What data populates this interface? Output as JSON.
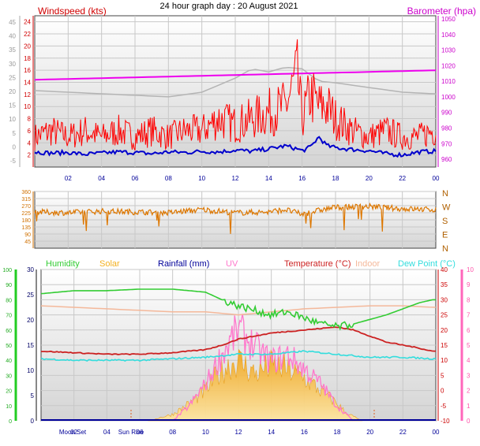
{
  "title": "24 hour graph day : 20 August 2021",
  "x_ticks": [
    "02",
    "04",
    "06",
    "08",
    "10",
    "12",
    "14",
    "16",
    "18",
    "20",
    "22",
    "00"
  ],
  "colors": {
    "wind": "#ff0000",
    "gust_avg": "#0000cc",
    "baro": "#ee00ee",
    "baro_grey": "#b4b4b4",
    "dir": "#dd7700",
    "humidity": "#33cc33",
    "solar": "#f3b020",
    "rain": "#000099",
    "uv": "#ff77cc",
    "temp": "#cc2222",
    "indoor": "#f4b89a",
    "dew": "#33dddd"
  },
  "chart_data": [
    {
      "type": "line",
      "name": "wind-baro",
      "title": "24 hour graph day : 20 August 2021",
      "left_label": "Windspeed (kts)",
      "right_label": "Barometer (hpa)",
      "left_ticks": [
        "24",
        "22",
        "20",
        "18",
        "16",
        "14",
        "12",
        "10",
        "8",
        "6",
        "4",
        "2"
      ],
      "outer_left_ticks": [
        "45",
        "40",
        "35",
        "30",
        "25",
        "20",
        "15",
        "10",
        "5",
        "0",
        "-5"
      ],
      "right_ticks": [
        "1050",
        "1040",
        "1030",
        "1020",
        "1010",
        "1000",
        "990",
        "980",
        "970",
        "960"
      ],
      "ylim": [
        0,
        25
      ],
      "baro_ylim": [
        955,
        1052
      ],
      "series": [
        {
          "key": "wind",
          "x": [
            0,
            1,
            2,
            3,
            4,
            5,
            6,
            7,
            8,
            9,
            10,
            11,
            12,
            13,
            14,
            15,
            15.7,
            16,
            16.5,
            17,
            17.5,
            18,
            19,
            20,
            21,
            22,
            23,
            23.8
          ],
          "values": [
            5,
            6,
            5,
            6,
            5,
            6,
            5,
            6,
            5,
            6,
            6,
            8,
            7,
            8,
            9,
            10,
            15,
            8,
            12,
            10,
            10,
            8,
            6,
            5,
            6,
            5,
            5,
            6
          ]
        },
        {
          "key": "gust_avg",
          "x": [
            0,
            1,
            2,
            3,
            4,
            5,
            6,
            7,
            8,
            9,
            10,
            11,
            12,
            13,
            14,
            15,
            15.7,
            16,
            16.5,
            17,
            17.5,
            18,
            19,
            20,
            21,
            22,
            23,
            23.8
          ],
          "values": [
            2.5,
            2.3,
            2.4,
            2.1,
            2.3,
            2.5,
            2.4,
            2.2,
            2.5,
            2.4,
            2.6,
            2.5,
            2.8,
            2.6,
            3,
            3.5,
            3,
            2.7,
            3.3,
            5,
            3.5,
            3.2,
            2.9,
            2.7,
            2.2,
            2,
            2.5,
            2.6
          ]
        },
        {
          "key": "baro",
          "x": [
            0,
            4,
            8,
            12,
            16,
            20,
            23.8
          ],
          "values": [
            1011,
            1012,
            1013,
            1014,
            1015,
            1016,
            1017
          ]
        },
        {
          "key": "baro_grey",
          "x": [
            0,
            4,
            8,
            10,
            12,
            13,
            14,
            15,
            16,
            17,
            18,
            20,
            22,
            23.8
          ],
          "values": [
            1004,
            1002,
            1000,
            1003,
            1012,
            1018,
            1016,
            1019,
            1018,
            1010,
            1009,
            1006,
            1003,
            1002
          ]
        }
      ]
    },
    {
      "type": "scatter",
      "name": "wind-direction",
      "left_ticks": [
        "360",
        "315",
        "270",
        "225",
        "180",
        "135",
        "90",
        "45"
      ],
      "right_ticks": [
        "N",
        "W",
        "S",
        "E",
        "N"
      ],
      "ylim": [
        0,
        360
      ],
      "series": [
        {
          "key": "dir",
          "x": [
            0,
            2,
            4,
            6,
            8,
            10,
            12,
            14,
            15,
            16,
            17,
            18,
            20,
            22,
            23.8
          ],
          "values": [
            230,
            225,
            235,
            230,
            225,
            245,
            225,
            230,
            245,
            215,
            240,
            260,
            265,
            250,
            245
          ]
        }
      ]
    },
    {
      "type": "line",
      "name": "temp-humidity-solar",
      "legend": [
        "Humidity",
        "Solar",
        "Rainfall (mm)",
        "UV",
        "Temperature (°C)",
        "Indoor",
        "Dew Point (°C)"
      ],
      "humidity_ticks": [
        "100",
        "90",
        "80",
        "70",
        "60",
        "50",
        "40",
        "30",
        "20",
        "10",
        "0"
      ],
      "solar_ticks": [
        "30",
        "25",
        "20",
        "15",
        "10",
        "5",
        "0"
      ],
      "temp_ticks": [
        "40",
        "35",
        "30",
        "25",
        "20",
        "15",
        "10",
        "5",
        "0",
        "-5",
        "-10"
      ],
      "uv_ticks": [
        "10",
        "9",
        "8",
        "7",
        "6",
        "5",
        "4",
        "3",
        "2",
        "1",
        "0"
      ],
      "x_annotations": [
        "Moon Set",
        "Sun Rise"
      ],
      "ylim": [
        -10,
        40
      ],
      "series": [
        {
          "key": "humidity",
          "x": [
            0,
            2,
            4,
            6,
            8,
            10,
            11,
            12,
            13,
            14,
            15,
            16,
            17,
            18,
            19,
            20,
            21,
            22,
            23,
            23.8
          ],
          "values": [
            84,
            86,
            86,
            87,
            87,
            85,
            80,
            76,
            73,
            70,
            72,
            68,
            64,
            62,
            64,
            67,
            70,
            74,
            78,
            80
          ]
        },
        {
          "key": "temp",
          "x": [
            0,
            2,
            4,
            6,
            8,
            10,
            11,
            12,
            13,
            14,
            15,
            16,
            17,
            18,
            19,
            20,
            21,
            22,
            23,
            23.8
          ],
          "values": [
            13,
            12.5,
            12,
            12,
            12.5,
            13.5,
            15,
            17,
            18,
            19,
            19.5,
            20,
            20.5,
            21,
            20,
            18,
            16,
            15,
            14,
            13
          ]
        },
        {
          "key": "indoor",
          "x": [
            0,
            4,
            8,
            10,
            12,
            14,
            16,
            18,
            20,
            22,
            23.8
          ],
          "values": [
            28,
            27,
            26,
            26,
            25,
            26,
            27,
            27.5,
            28,
            28,
            27.5
          ]
        },
        {
          "key": "dew",
          "x": [
            0,
            2,
            4,
            6,
            8,
            10,
            12,
            14,
            16,
            18,
            20,
            22,
            23.8
          ],
          "values": [
            10.5,
            10,
            10,
            10,
            10.5,
            11,
            12,
            12,
            13,
            12,
            11,
            11,
            10.5
          ]
        },
        {
          "key": "solar",
          "x": [
            6.5,
            8,
            9,
            10,
            11,
            12,
            13,
            14,
            15,
            16,
            17,
            18,
            18.5,
            19,
            19.5
          ],
          "values": [
            0,
            1.5,
            4,
            7,
            12,
            14,
            11,
            13,
            12,
            10,
            7,
            4,
            2,
            1,
            0
          ]
        },
        {
          "key": "uv",
          "x": [
            8,
            9,
            10,
            11,
            12,
            13,
            14,
            15,
            16,
            17,
            18,
            19
          ],
          "values": [
            0,
            1,
            2.5,
            4.5,
            6.2,
            5,
            4,
            4.5,
            3.5,
            2.5,
            1,
            0
          ]
        }
      ]
    }
  ]
}
